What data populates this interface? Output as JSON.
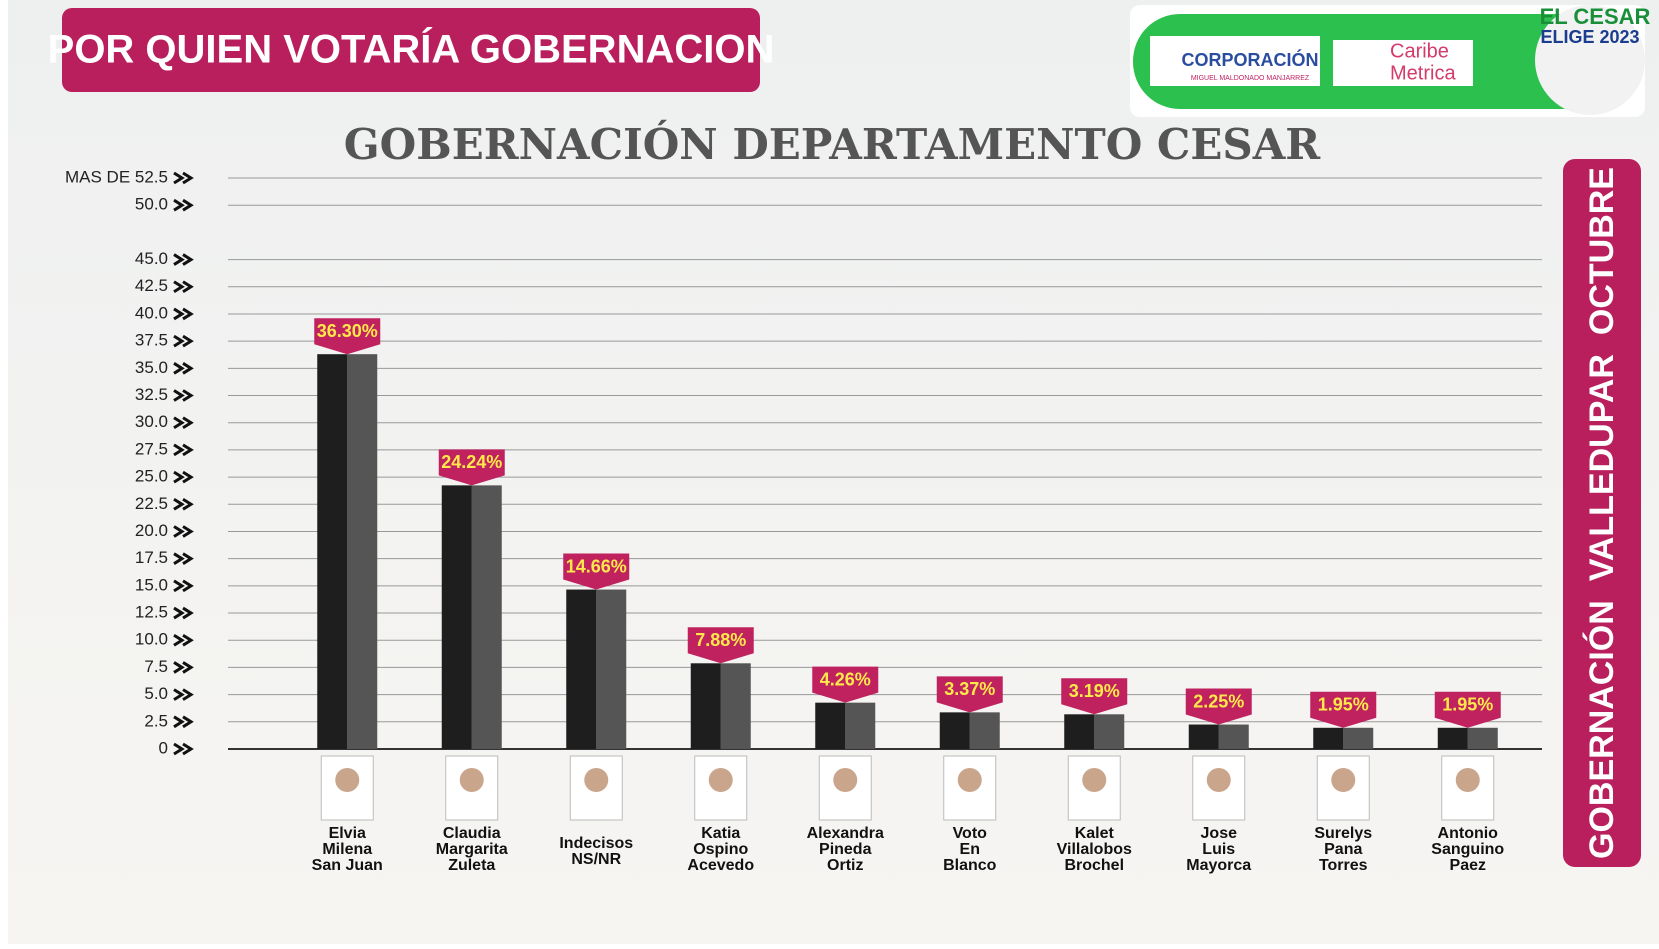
{
  "header": {
    "title": "POR QUIEN VOTARÍA GOBERNACION"
  },
  "logo": {
    "name": "CORPORACIÓN",
    "subname": "MIGUEL MALDONADO MANJARREZ",
    "partner_a": "Caribe",
    "partner_b": "Metrica",
    "badge_top": "EL CESAR",
    "badge_bottom": "ELIGE 2023"
  },
  "side_label": "GOBERNACIÓN  VALLEDUPAR  OCTUBRE",
  "chart_data": {
    "type": "bar",
    "title": "GOBERNACIÓN DEPARTAMENTO CESAR",
    "categories": [
      [
        "Elvia",
        "Milena",
        "San Juan"
      ],
      [
        "Claudia",
        "Margarita",
        "Zuleta"
      ],
      [
        "Indecisos",
        "NS/NR"
      ],
      [
        "Katia",
        "Ospino",
        "Acevedo"
      ],
      [
        "Alexandra",
        "Pineda",
        "Ortiz"
      ],
      [
        "Voto",
        "En",
        "Blanco"
      ],
      [
        "Kalet",
        "Villalobos",
        "Brochel"
      ],
      [
        "Jose",
        "Luis",
        "Mayorca"
      ],
      [
        "Surelys",
        "Pana",
        "Torres"
      ],
      [
        "Antonio",
        "Sanguino",
        "Paez"
      ]
    ],
    "values": [
      36.3,
      24.24,
      14.66,
      7.88,
      4.26,
      3.37,
      3.19,
      2.25,
      1.95,
      1.95
    ],
    "value_labels": [
      "36.30%",
      "24.24%",
      "14.66%",
      "7.88%",
      "4.26%",
      "3.37%",
      "3.19%",
      "2.25%",
      "1.95%",
      "1.95%"
    ],
    "color": "#1e1e1e",
    "side_color": "#555555",
    "label_color": "#c0225f",
    "ylim": [
      0,
      52.5
    ],
    "yticks": [
      0,
      2.5,
      {
        "value": 5,
        "label": "5.0"
      },
      7.5,
      {
        "value": 10,
        "label": "10.0"
      },
      12.5,
      {
        "value": 15,
        "label": "15.0"
      },
      17.5,
      {
        "value": 20,
        "label": "20.0"
      },
      22.5,
      {
        "value": 25,
        "label": "25.0"
      },
      27.5,
      {
        "value": 30,
        "label": "30.0"
      },
      32.5,
      {
        "value": 35,
        "label": "35.0"
      },
      37.5,
      {
        "value": 40,
        "label": "40.0"
      },
      42.5,
      {
        "value": 45,
        "label": "45.0"
      },
      {
        "value": 50,
        "label": "50.0"
      },
      {
        "value": 52.5,
        "label": "MAS DE 52.5"
      }
    ],
    "grid": true
  }
}
